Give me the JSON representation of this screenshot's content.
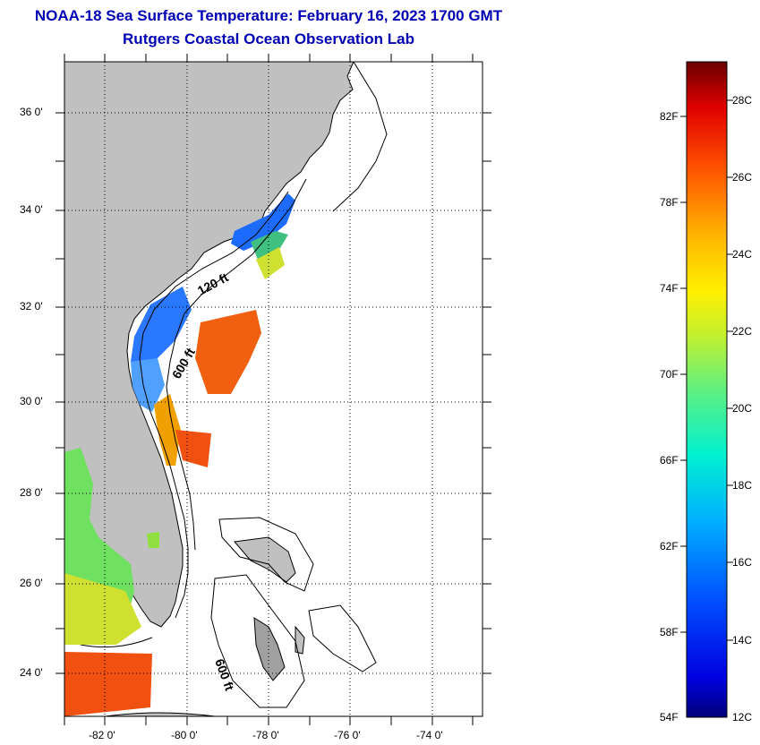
{
  "header": {
    "title": "NOAA-18 Sea Surface Temperature:  February 16, 2023 1700 GMT",
    "subtitle": "Rutgers Coastal Ocean Observation Lab"
  },
  "map": {
    "lat_labels": [
      "36 0'",
      "34 0'",
      "32 0'",
      "30 0'",
      "28 0'",
      "26 0'",
      "24 0'"
    ],
    "lon_labels": [
      "-82 0'",
      "-80 0'",
      "-78 0'",
      "-76 0'",
      "-74 0'"
    ],
    "contour_labels": [
      "120 ft",
      "600 ft",
      "600 ft"
    ],
    "land_color": "#c0c0c0",
    "ocean_color": "#ffffff"
  },
  "colorbar": {
    "fahrenheit_labels": [
      "82F",
      "78F",
      "74F",
      "70F",
      "66F",
      "62F",
      "58F",
      "54F"
    ],
    "celsius_labels": [
      "28C",
      "26C",
      "24C",
      "22C",
      "20C",
      "18C",
      "16C",
      "14C",
      "12C"
    ],
    "range_c": [
      12,
      29
    ]
  }
}
